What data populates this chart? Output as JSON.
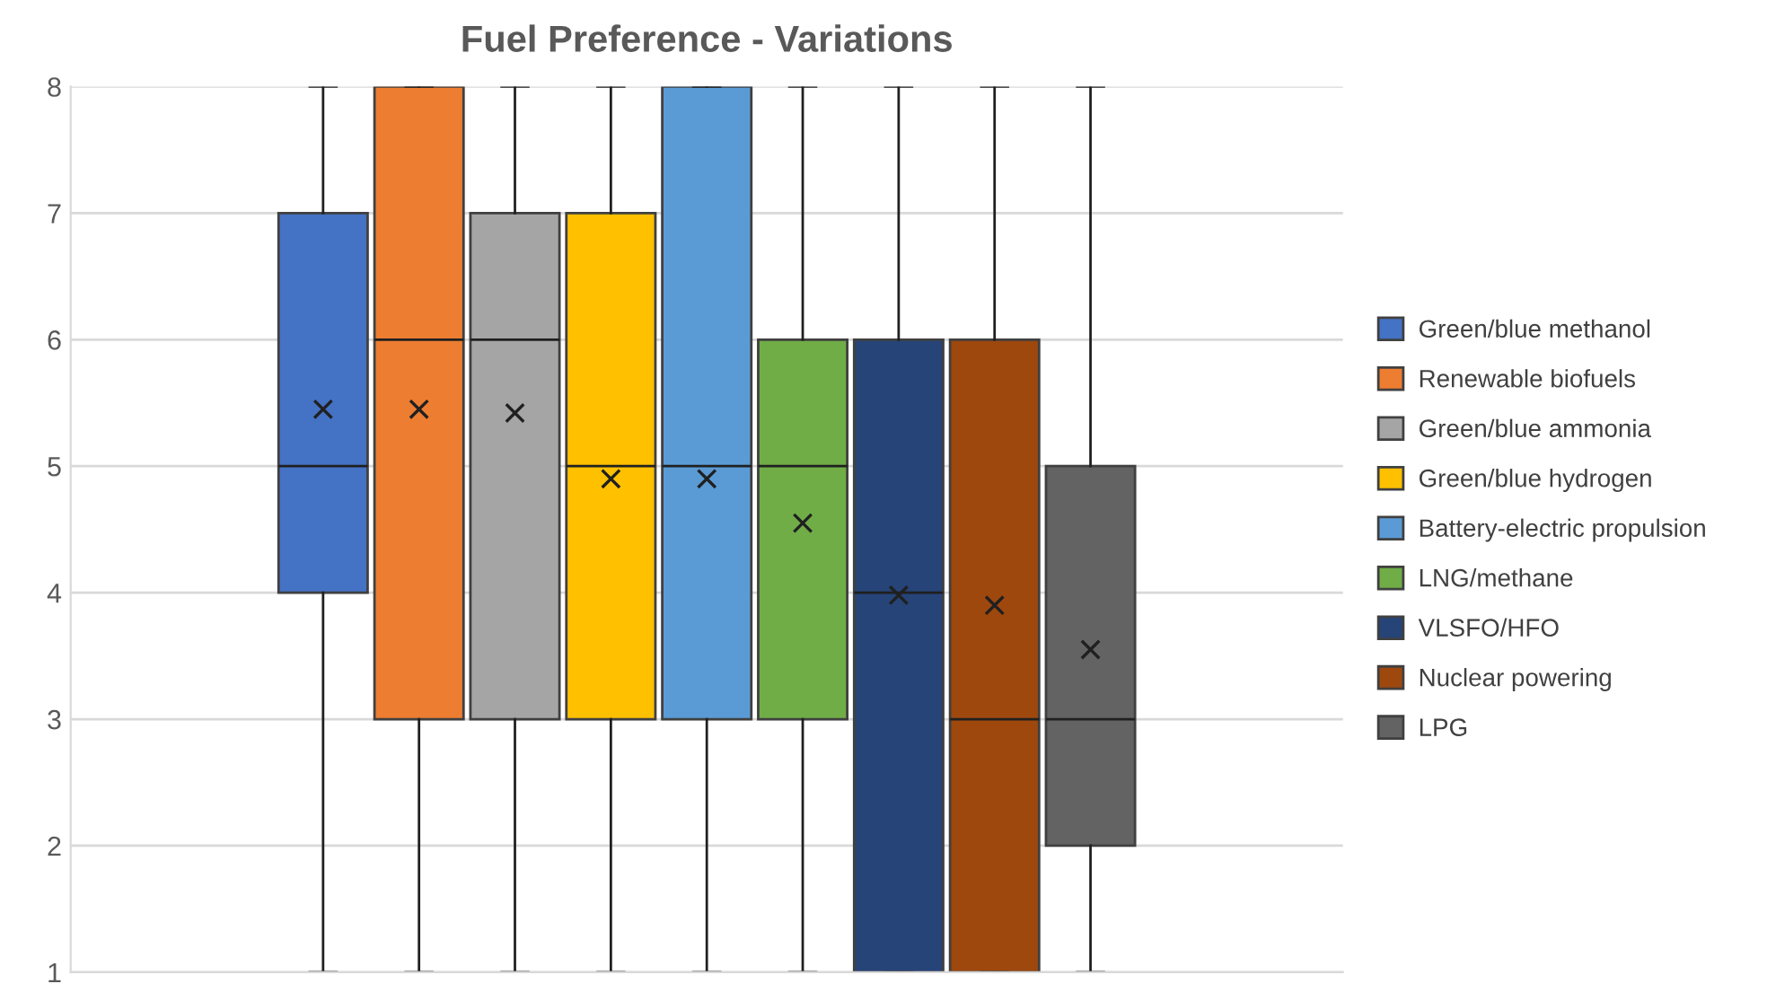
{
  "chart_data": {
    "type": "box",
    "title": "Fuel Preference - Variations",
    "categories": [
      null
    ],
    "ylim": [
      1,
      8
    ],
    "yticks": [
      1,
      2,
      3,
      4,
      5,
      6,
      7,
      8
    ],
    "grid": "y",
    "legend": "right",
    "series": [
      {
        "name": "Green/blue methanol",
        "color": "#4472c4",
        "boxes": [
          {
            "low": 1,
            "q1": 4,
            "median": 5,
            "q3": 7,
            "high": 8,
            "mean": 5.45
          }
        ]
      },
      {
        "name": "Renewable biofuels",
        "color": "#ed7d31",
        "boxes": [
          {
            "low": 1,
            "q1": 3,
            "median": 6,
            "q3": 8,
            "high": 8,
            "mean": 5.45
          }
        ]
      },
      {
        "name": "Green/blue ammonia",
        "color": "#a5a5a5",
        "boxes": [
          {
            "low": 1,
            "q1": 3,
            "median": 6,
            "q3": 7,
            "high": 8,
            "mean": 5.42
          }
        ]
      },
      {
        "name": "Green/blue hydrogen",
        "color": "#ffc000",
        "boxes": [
          {
            "low": 1,
            "q1": 3,
            "median": 5,
            "q3": 7,
            "high": 8,
            "mean": 4.9
          }
        ]
      },
      {
        "name": "Battery-electric propulsion",
        "color": "#5b9bd5",
        "boxes": [
          {
            "low": 1,
            "q1": 3,
            "median": 5,
            "q3": 8,
            "high": 8,
            "mean": 4.9
          }
        ]
      },
      {
        "name": "LNG/methane",
        "color": "#70ad47",
        "boxes": [
          {
            "low": 1,
            "q1": 3,
            "median": 5,
            "q3": 6,
            "high": 8,
            "mean": 4.55
          }
        ]
      },
      {
        "name": "VLSFO/HFO",
        "color": "#264478",
        "boxes": [
          {
            "low": 1,
            "q1": 1,
            "median": 4,
            "q3": 6,
            "high": 8,
            "mean": 3.98
          }
        ]
      },
      {
        "name": "Nuclear powering",
        "color": "#9e480e",
        "boxes": [
          {
            "low": 1,
            "q1": 1,
            "median": 3,
            "q3": 6,
            "high": 8,
            "mean": 3.9
          }
        ]
      },
      {
        "name": "LPG",
        "color": "#636363",
        "boxes": [
          {
            "low": 1,
            "q1": 2,
            "median": 3,
            "q3": 5,
            "high": 8,
            "mean": 3.55
          }
        ]
      }
    ]
  }
}
